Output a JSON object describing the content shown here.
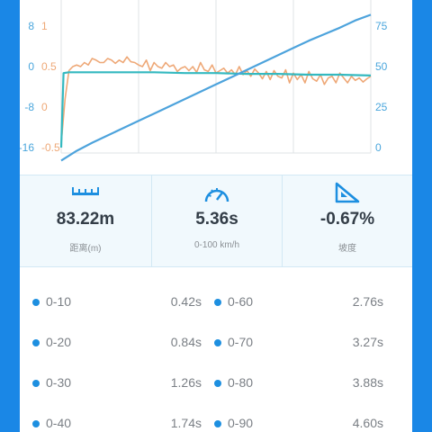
{
  "chart_data": {
    "type": "line",
    "left_axis_outer_ticks": [
      "8",
      "0",
      "-8",
      "-16"
    ],
    "left_axis_inner_ticks": [
      "1",
      "0.5",
      "0",
      "-0.5"
    ],
    "right_axis_ticks": [
      "75",
      "50",
      "25",
      "0"
    ],
    "series": [
      {
        "color": "#eea877",
        "axis": "left_inner",
        "x": [
          0,
          0.5,
          1,
          1.5,
          2,
          2.5,
          3,
          3.5,
          4,
          4.5,
          5,
          5.5,
          6,
          6.5,
          7,
          7.5,
          8,
          8.5,
          9,
          9.5,
          10,
          10.5,
          11,
          11.5,
          12,
          12.5,
          13,
          13.5,
          14,
          14.5,
          15,
          15.5,
          16,
          16.5,
          17,
          17.5,
          18,
          18.5,
          19,
          19.5,
          20,
          20.5,
          21,
          21.5,
          22,
          22.5,
          23,
          23.5,
          24,
          24.5,
          25,
          25.5,
          26,
          26.5,
          27,
          27.5,
          28,
          28.5,
          29,
          29.5,
          30,
          30.5,
          31,
          31.5,
          32,
          32.5,
          33,
          33.5,
          34,
          34.5,
          35,
          35.5,
          36,
          36.5,
          37,
          37.5,
          38,
          38.5,
          39,
          39.5,
          40
        ],
        "values": [
          -0.45,
          0.1,
          0.45,
          0.5,
          0.52,
          0.5,
          0.55,
          0.52,
          0.6,
          0.58,
          0.55,
          0.55,
          0.6,
          0.58,
          0.54,
          0.58,
          0.55,
          0.62,
          0.56,
          0.55,
          0.52,
          0.5,
          0.58,
          0.45,
          0.55,
          0.5,
          0.48,
          0.55,
          0.5,
          0.52,
          0.44,
          0.48,
          0.5,
          0.45,
          0.5,
          0.43,
          0.55,
          0.46,
          0.44,
          0.52,
          0.42,
          0.45,
          0.48,
          0.42,
          0.46,
          0.4,
          0.5,
          0.4,
          0.45,
          0.38,
          0.47,
          0.42,
          0.35,
          0.44,
          0.34,
          0.45,
          0.38,
          0.36,
          0.46,
          0.3,
          0.42,
          0.34,
          0.4,
          0.3,
          0.44,
          0.35,
          0.32,
          0.4,
          0.28,
          0.36,
          0.38,
          0.3,
          0.42,
          0.36,
          0.3,
          0.38,
          0.33,
          0.36,
          0.31,
          0.35,
          0.38
        ]
      },
      {
        "color": "#34b9c0",
        "axis": "left_inner",
        "x": [
          0,
          0.3,
          1,
          4,
          8,
          12,
          16,
          20,
          24,
          28,
          32,
          36,
          40
        ],
        "values": [
          -0.5,
          0.42,
          0.43,
          0.43,
          0.43,
          0.43,
          0.42,
          0.42,
          0.41,
          0.41,
          0.4,
          0.4,
          0.39
        ]
      },
      {
        "color": "#4da3dc",
        "axis": "right",
        "x": [
          0,
          2,
          4,
          6,
          8,
          10,
          12,
          14,
          16,
          18,
          20,
          22,
          24,
          26,
          28,
          30,
          32,
          34,
          36,
          38,
          40
        ],
        "values": [
          -8,
          -2,
          3,
          7.5,
          12,
          16.5,
          21,
          25.5,
          30,
          34.5,
          39,
          43.5,
          48,
          52.5,
          57,
          61.5,
          66,
          70,
          74,
          78.5,
          82
        ]
      }
    ]
  },
  "stats": [
    {
      "icon": "distance-ruler-icon",
      "value": "83.22m",
      "label": "距离(m)"
    },
    {
      "icon": "speedometer-icon",
      "value": "5.36s",
      "label": "0-100 km/h"
    },
    {
      "icon": "slope-icon",
      "value": "-0.67%",
      "label": "坡度"
    }
  ],
  "accel_times": [
    [
      {
        "label": "0-10",
        "value": "0.42s"
      },
      {
        "label": "0-60",
        "value": "2.76s"
      }
    ],
    [
      {
        "label": "0-20",
        "value": "0.84s"
      },
      {
        "label": "0-70",
        "value": "3.27s"
      }
    ],
    [
      {
        "label": "0-30",
        "value": "1.26s"
      },
      {
        "label": "0-80",
        "value": "3.88s"
      }
    ],
    [
      {
        "label": "0-40",
        "value": "1.74s"
      },
      {
        "label": "0-90",
        "value": "4.60s"
      }
    ]
  ]
}
